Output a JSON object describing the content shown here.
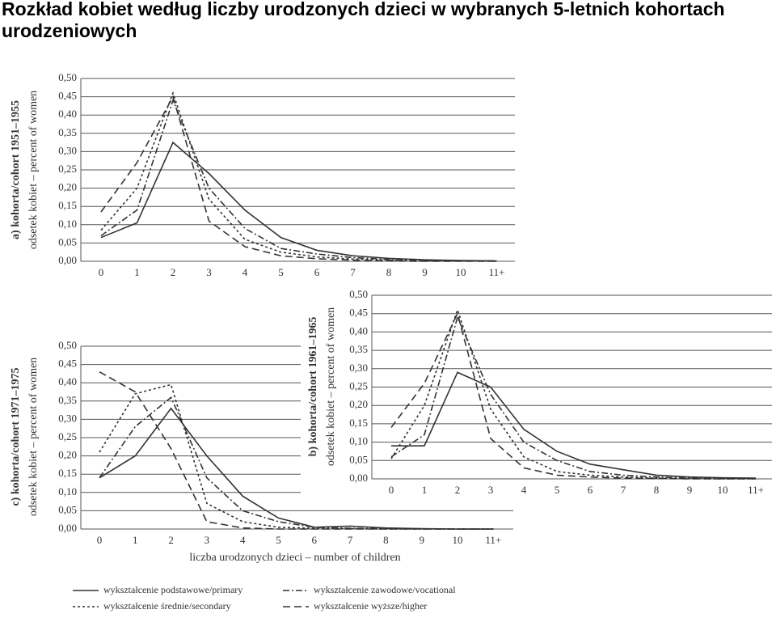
{
  "title": "Rozkład kobiet według liczby urodzonych dzieci w wybranych 5-letnich kohortach urodzeniowych",
  "chart_data": [
    {
      "type": "line",
      "title": "a) kohorta/cohort 1951–1955",
      "ylabel": "odsetek kobiet – percent of women",
      "categories": [
        "0",
        "1",
        "2",
        "3",
        "4",
        "5",
        "6",
        "7",
        "8",
        "9",
        "10",
        "11+"
      ],
      "ylim": [
        0,
        0.5
      ],
      "yticks": [
        {
          "value": 0,
          "label": "0,00"
        },
        {
          "value": 0.05,
          "label": "0,05"
        },
        {
          "value": 0.1,
          "label": "0,10"
        },
        {
          "value": 0.15,
          "label": "0,15"
        },
        {
          "value": 0.2,
          "label": "0,20"
        },
        {
          "value": 0.25,
          "label": "0,25"
        },
        {
          "value": 0.3,
          "label": "0,30"
        },
        {
          "value": 0.35,
          "label": "0,35"
        },
        {
          "value": 0.4,
          "label": "0,40"
        },
        {
          "value": 0.45,
          "label": "0,45"
        },
        {
          "value": 0.5,
          "label": "0,50"
        }
      ],
      "grid": true,
      "series": [
        {
          "name": "wykształcenie podstawowe/primary",
          "color": "#333333",
          "dash": "solid",
          "values": [
            0.065,
            0.105,
            0.325,
            0.24,
            0.14,
            0.065,
            0.03,
            0.015,
            0.008,
            0.004,
            0.002,
            0.001
          ]
        },
        {
          "name": "wykształcenie zawodowe/vocational",
          "color": "#333333",
          "dash": "dashdot",
          "values": [
            0.07,
            0.14,
            0.44,
            0.2,
            0.09,
            0.035,
            0.02,
            0.01,
            0.005,
            0.003,
            0.001,
            0.001
          ]
        },
        {
          "name": "wykształcenie średnie/secondary",
          "color": "#333333",
          "dash": "dotted",
          "values": [
            0.085,
            0.2,
            0.46,
            0.17,
            0.06,
            0.025,
            0.012,
            0.006,
            0.003,
            0.001,
            0.001,
            0
          ]
        },
        {
          "name": "wykształcenie wyższe/higher",
          "color": "#333333",
          "dash": "dashed",
          "values": [
            0.135,
            0.27,
            0.45,
            0.11,
            0.04,
            0.015,
            0.007,
            0.003,
            0.001,
            0,
            0,
            0
          ]
        }
      ]
    },
    {
      "type": "line",
      "title": "b) kohorta/cohort 1961–1965",
      "ylabel": "odsetek kobiet – percent of women",
      "categories": [
        "0",
        "1",
        "2",
        "3",
        "4",
        "5",
        "6",
        "7",
        "8",
        "9",
        "10",
        "11+"
      ],
      "ylim": [
        0,
        0.5
      ],
      "yticks": [
        {
          "value": 0,
          "label": "0,00"
        },
        {
          "value": 0.05,
          "label": "0,05"
        },
        {
          "value": 0.1,
          "label": "0,10"
        },
        {
          "value": 0.15,
          "label": "0,15"
        },
        {
          "value": 0.2,
          "label": "0,20"
        },
        {
          "value": 0.25,
          "label": "0,25"
        },
        {
          "value": 0.3,
          "label": "0,30"
        },
        {
          "value": 0.35,
          "label": "0,35"
        },
        {
          "value": 0.4,
          "label": "0,40"
        },
        {
          "value": 0.45,
          "label": "0,45"
        },
        {
          "value": 0.5,
          "label": "0,50"
        }
      ],
      "grid": true,
      "series": [
        {
          "name": "wykształcenie podstawowe/primary",
          "color": "#333333",
          "dash": "solid",
          "values": [
            0.09,
            0.09,
            0.29,
            0.25,
            0.135,
            0.075,
            0.04,
            0.025,
            0.01,
            0.005,
            0.003,
            0.002
          ]
        },
        {
          "name": "wykształcenie zawodowe/vocational",
          "color": "#333333",
          "dash": "dashdot",
          "values": [
            0.06,
            0.12,
            0.44,
            0.23,
            0.1,
            0.05,
            0.02,
            0.01,
            0.005,
            0.002,
            0.001,
            0.001
          ]
        },
        {
          "name": "wykształcenie średnie/secondary",
          "color": "#333333",
          "dash": "dotted",
          "values": [
            0.055,
            0.2,
            0.46,
            0.19,
            0.06,
            0.02,
            0.01,
            0.005,
            0.002,
            0.001,
            0,
            0
          ]
        },
        {
          "name": "wykształcenie wyższe/higher",
          "color": "#333333",
          "dash": "dashed",
          "values": [
            0.14,
            0.26,
            0.45,
            0.11,
            0.03,
            0.01,
            0.005,
            0.002,
            0.001,
            0,
            0,
            0
          ]
        }
      ]
    },
    {
      "type": "line",
      "title": "c) kohorta/cohort 1971–1975",
      "ylabel": "odsetek kobiet – percent of women",
      "xlabel": "liczba urodzonych dzieci – number of children",
      "categories": [
        "0",
        "1",
        "2",
        "3",
        "4",
        "5",
        "6",
        "7",
        "8",
        "9",
        "10",
        "11+"
      ],
      "ylim": [
        0,
        0.5
      ],
      "yticks": [
        {
          "value": 0,
          "label": "0,00"
        },
        {
          "value": 0.05,
          "label": "0,05"
        },
        {
          "value": 0.1,
          "label": "0,10"
        },
        {
          "value": 0.15,
          "label": "0,15"
        },
        {
          "value": 0.2,
          "label": "0,20"
        },
        {
          "value": 0.25,
          "label": "0,25"
        },
        {
          "value": 0.3,
          "label": "0,30"
        },
        {
          "value": 0.35,
          "label": "0,35"
        },
        {
          "value": 0.4,
          "label": "0,40"
        },
        {
          "value": 0.45,
          "label": "0,45"
        },
        {
          "value": 0.5,
          "label": "0,50"
        }
      ],
      "grid": true,
      "series": [
        {
          "name": "wykształcenie podstawowe/primary",
          "color": "#333333",
          "dash": "solid",
          "values": [
            0.14,
            0.2,
            0.33,
            0.2,
            0.09,
            0.03,
            0.005,
            0.008,
            0.003,
            0.001,
            0,
            0
          ]
        },
        {
          "name": "wykształcenie zawodowe/vocational",
          "color": "#333333",
          "dash": "dashdot",
          "values": [
            0.14,
            0.28,
            0.36,
            0.14,
            0.05,
            0.02,
            0.005,
            0.002,
            0.001,
            0,
            0,
            0
          ]
        },
        {
          "name": "wykształcenie średnie/secondary",
          "color": "#333333",
          "dash": "dotted",
          "values": [
            0.21,
            0.37,
            0.395,
            0.07,
            0.02,
            0.005,
            0.002,
            0.001,
            0,
            0,
            0,
            0
          ]
        },
        {
          "name": "wykształcenie wyższe/higher",
          "color": "#333333",
          "dash": "dashed",
          "values": [
            0.43,
            0.375,
            0.22,
            0.02,
            0.003,
            0,
            0,
            0,
            0,
            0,
            0,
            0
          ]
        }
      ]
    }
  ]
}
